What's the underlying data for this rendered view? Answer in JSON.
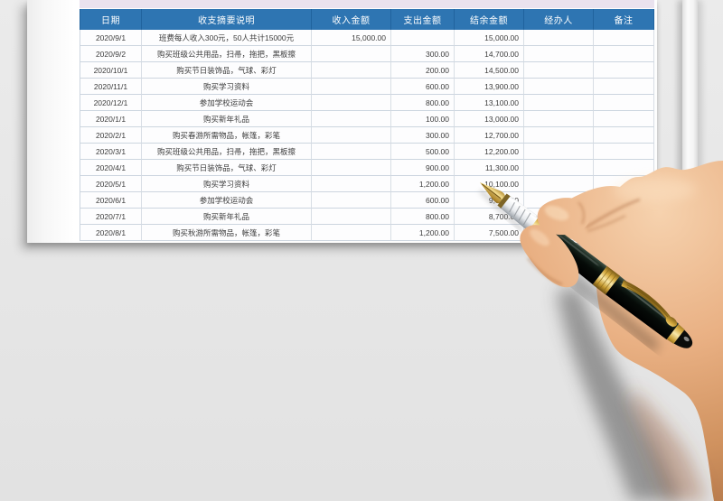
{
  "document": {
    "kind": "class-fee income and expense ledger spreadsheet",
    "title_strip_color": "#e9e2ee"
  },
  "table": {
    "header": {
      "labels": [
        "日期",
        "收支摘要说明",
        "收入金额",
        "支出金额",
        "结余金额",
        "经办人",
        "备注"
      ],
      "bg": "#2e75b2",
      "text_color": "#ffffff"
    },
    "rows": [
      {
        "date": "2020/9/1",
        "desc": "班费每人收入300元，50人共计15000元",
        "income": "15,000.00",
        "expense": "",
        "balance": "15,000.00",
        "handler": "",
        "note": ""
      },
      {
        "date": "2020/9/2",
        "desc": "购买班级公共用品，扫帚，拖把，黑板擦",
        "income": "",
        "expense": "300.00",
        "balance": "14,700.00",
        "handler": "",
        "note": ""
      },
      {
        "date": "2020/10/1",
        "desc": "购买节日装饰品，气球、彩灯",
        "income": "",
        "expense": "200.00",
        "balance": "14,500.00",
        "handler": "",
        "note": ""
      },
      {
        "date": "2020/11/1",
        "desc": "购买学习资料",
        "income": "",
        "expense": "600.00",
        "balance": "13,900.00",
        "handler": "",
        "note": ""
      },
      {
        "date": "2020/12/1",
        "desc": "参加学校运动会",
        "income": "",
        "expense": "800.00",
        "balance": "13,100.00",
        "handler": "",
        "note": ""
      },
      {
        "date": "2020/1/1",
        "desc": "购买新年礼品",
        "income": "",
        "expense": "100.00",
        "balance": "13,000.00",
        "handler": "",
        "note": ""
      },
      {
        "date": "2020/2/1",
        "desc": "购买春游所需物品，帐篷，彩笔",
        "income": "",
        "expense": "300.00",
        "balance": "12,700.00",
        "handler": "",
        "note": ""
      },
      {
        "date": "2020/3/1",
        "desc": "购买班级公共用品，扫帚，拖把，黑板擦",
        "income": "",
        "expense": "500.00",
        "balance": "12,200.00",
        "handler": "",
        "note": ""
      },
      {
        "date": "2020/4/1",
        "desc": "购买节日装饰品，气球、彩灯",
        "income": "",
        "expense": "900.00",
        "balance": "11,300.00",
        "handler": "",
        "note": ""
      },
      {
        "date": "2020/5/1",
        "desc": "购买学习资料",
        "income": "",
        "expense": "1,200.00",
        "balance": "10,100.00",
        "handler": "",
        "note": ""
      },
      {
        "date": "2020/6/1",
        "desc": "参加学校运动会",
        "income": "",
        "expense": "600.00",
        "balance": "9,500.00",
        "handler": "",
        "note": ""
      },
      {
        "date": "2020/7/1",
        "desc": "购买新年礼品",
        "income": "",
        "expense": "800.00",
        "balance": "8,700.00",
        "handler": "",
        "note": ""
      },
      {
        "date": "2020/8/1",
        "desc": "购买秋游所需物品，帐篷，彩笔",
        "income": "",
        "expense": "1,200.00",
        "balance": "7,500.00",
        "handler": "",
        "note": ""
      }
    ]
  },
  "colors": {
    "page_bg": "#e7e7e7",
    "paper": "#fdfdfd",
    "grid_line": "#ccd5df",
    "header_separator": "#20639e",
    "row_text": "#3c3c3c",
    "skin_tone": "#e7ae80",
    "pen_body": "#0c120e",
    "pen_gold": "#d4a83c"
  },
  "overlay": {
    "photo": "hand-holding-fountain-pen",
    "pen_nib_points_at": "结余金额 column, row 2020/5/1"
  }
}
